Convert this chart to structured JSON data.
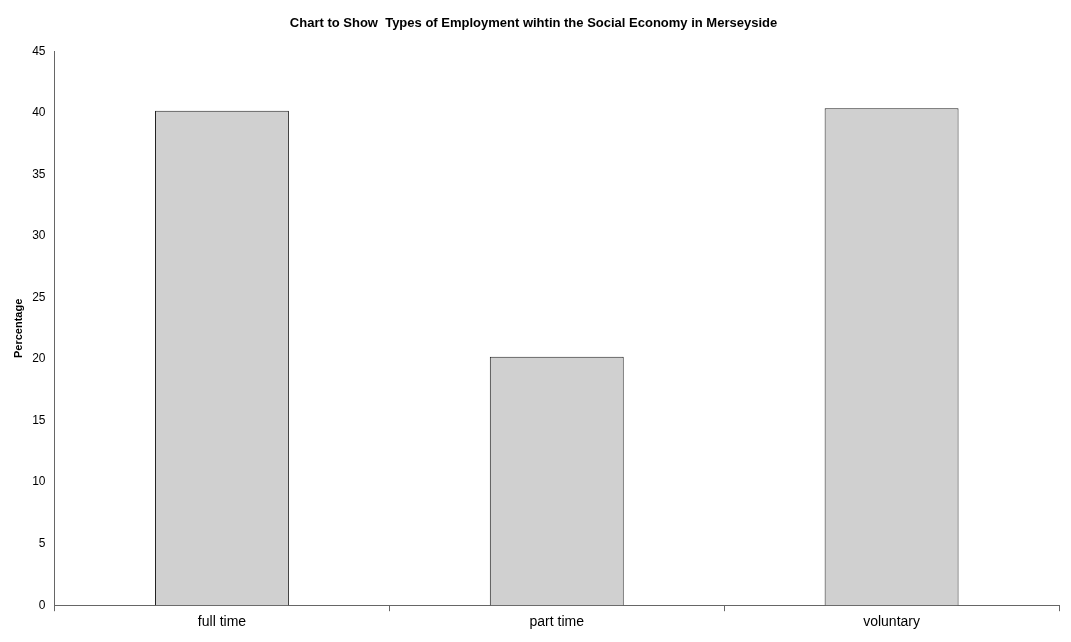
{
  "chart_data": {
    "type": "bar",
    "title": "Chart to Show  Types of Employment wihtin the Social Economy in Merseyside",
    "ylabel": "Percentage",
    "categories": [
      "full time",
      "part time",
      "voluntary"
    ],
    "values": [
      40.2,
      20.2,
      40.4
    ],
    "color": "#d0d0d0",
    "ylim": [
      0,
      45
    ],
    "yticks": [
      0,
      5,
      10,
      15,
      20,
      25,
      30,
      35,
      40,
      45
    ],
    "grid": false,
    "legend": false
  }
}
